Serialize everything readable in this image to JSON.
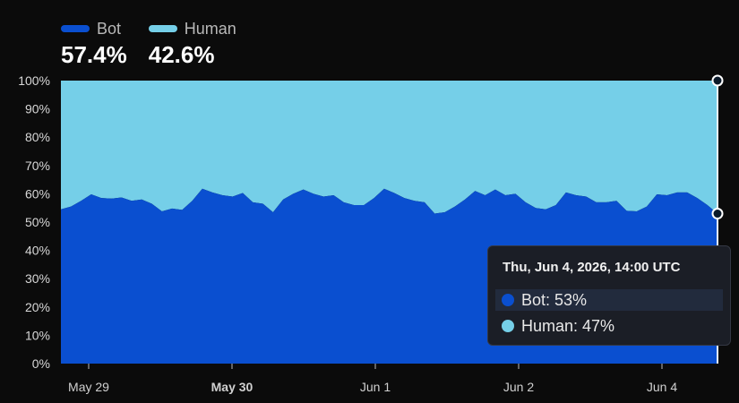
{
  "legend": [
    {
      "name": "Bot",
      "value": "57.4%",
      "color": "#0a4fd0"
    },
    {
      "name": "Human",
      "value": "42.6%",
      "color": "#75cfe8"
    }
  ],
  "tooltip": {
    "title": "Thu, Jun 4, 2026, 14:00 UTC",
    "rows": [
      {
        "label": "Bot: 53%",
        "color": "#0a4fd0"
      },
      {
        "label": "Human: 47%",
        "color": "#75cfe8"
      }
    ]
  },
  "chart_data": {
    "type": "area",
    "stacked": true,
    "x_ticks": [
      "May 29",
      "May 30",
      "Jun 1",
      "Jun 2",
      "Jun 4"
    ],
    "bold_ticks": [
      "May 30"
    ],
    "y_ticks": [
      "0%",
      "10%",
      "20%",
      "30%",
      "40%",
      "50%",
      "60%",
      "70%",
      "80%",
      "90%",
      "100%"
    ],
    "ylim": [
      0,
      100
    ],
    "grid": false,
    "series": [
      {
        "name": "Bot",
        "color": "#0a4fd0",
        "values": [
          54.5,
          55.5,
          57.5,
          59.8,
          58.5,
          58.3,
          58.7,
          57.5,
          58.0,
          56.5,
          53.8,
          54.8,
          54.3,
          57.5,
          61.8,
          60.5,
          59.5,
          59.0,
          60.3,
          57.0,
          56.5,
          53.5,
          58.0,
          60.0,
          61.5,
          60.0,
          59.0,
          59.5,
          57.0,
          56.0,
          56.0,
          58.5,
          61.8,
          60.3,
          58.5,
          57.5,
          57.0,
          53.0,
          53.5,
          55.5,
          58.0,
          61.0,
          59.5,
          61.5,
          59.5,
          60.0,
          57.0,
          55.0,
          54.5,
          56.0,
          60.5,
          59.5,
          59.0,
          57.0,
          57.0,
          57.5,
          54.0,
          53.8,
          55.5,
          59.8,
          59.5,
          60.5,
          60.5,
          58.5,
          56.0,
          53.0
        ]
      },
      {
        "name": "Human",
        "color": "#75cfe8",
        "values": [
          45.5,
          44.5,
          42.5,
          40.2,
          41.5,
          41.7,
          41.3,
          42.5,
          42.0,
          43.5,
          46.2,
          45.2,
          45.7,
          42.5,
          38.2,
          39.5,
          40.5,
          41.0,
          39.7,
          43.0,
          43.5,
          46.5,
          42.0,
          40.0,
          38.5,
          40.0,
          41.0,
          40.5,
          43.0,
          44.0,
          44.0,
          41.5,
          38.2,
          39.7,
          41.5,
          42.5,
          43.0,
          47.0,
          46.5,
          44.5,
          42.0,
          39.0,
          40.5,
          38.5,
          40.5,
          40.0,
          43.0,
          45.0,
          45.5,
          44.0,
          39.5,
          40.5,
          41.0,
          43.0,
          43.0,
          42.5,
          46.0,
          46.2,
          44.5,
          40.2,
          40.5,
          39.5,
          39.5,
          41.5,
          44.0,
          47.0
        ]
      }
    ]
  }
}
